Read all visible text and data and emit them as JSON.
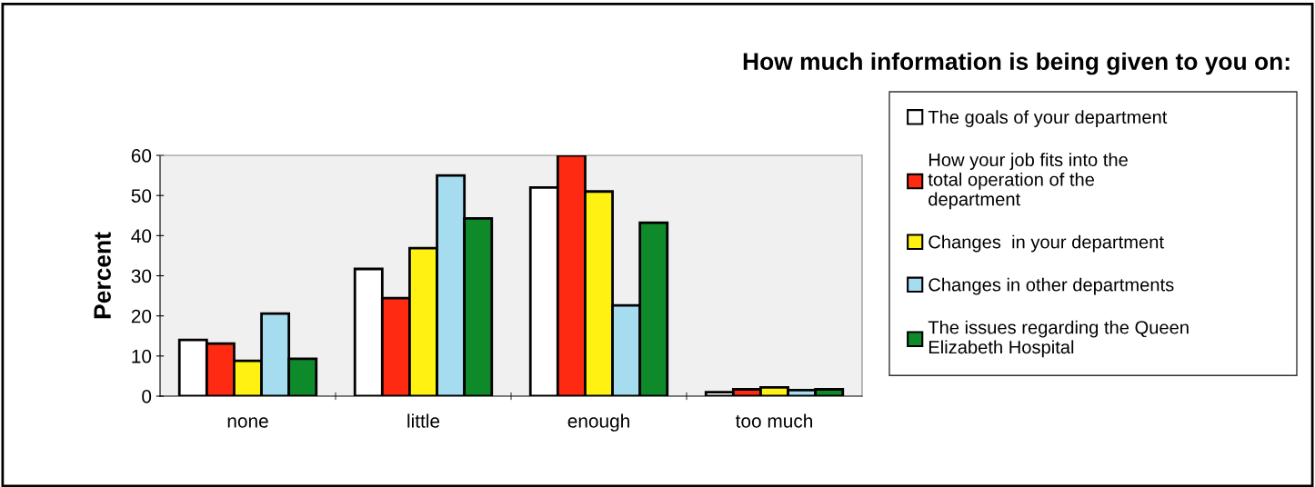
{
  "chart_data": {
    "type": "bar",
    "title": "How much information is being given to you on:",
    "ylabel": "Percent",
    "categories": [
      "none",
      "little",
      "enough",
      "too much"
    ],
    "series": [
      {
        "name": "The goals of your department",
        "color": "#ffffff",
        "values": [
          14,
          31.7,
          52,
          1
        ]
      },
      {
        "name": "How your job fits into the total operation of the department",
        "color": "#ff2a12",
        "values": [
          13.1,
          24.4,
          60,
          1.7
        ]
      },
      {
        "name": "Changes  in your department",
        "color": "#fff212",
        "values": [
          8.8,
          36.9,
          51,
          2.2
        ]
      },
      {
        "name": "Changes in other departments",
        "color": "#a6dcf0",
        "values": [
          20.6,
          55,
          22.6,
          1.5
        ]
      },
      {
        "name": "The issues regarding the Queen Elizabeth Hospital",
        "color": "#0e8a2a",
        "values": [
          9.3,
          44.3,
          43.2,
          1.7
        ]
      }
    ],
    "ylim": [
      0,
      60
    ],
    "yticks": [
      0,
      10,
      20,
      30,
      40,
      50,
      60
    ],
    "grid": false,
    "legend": "right"
  }
}
